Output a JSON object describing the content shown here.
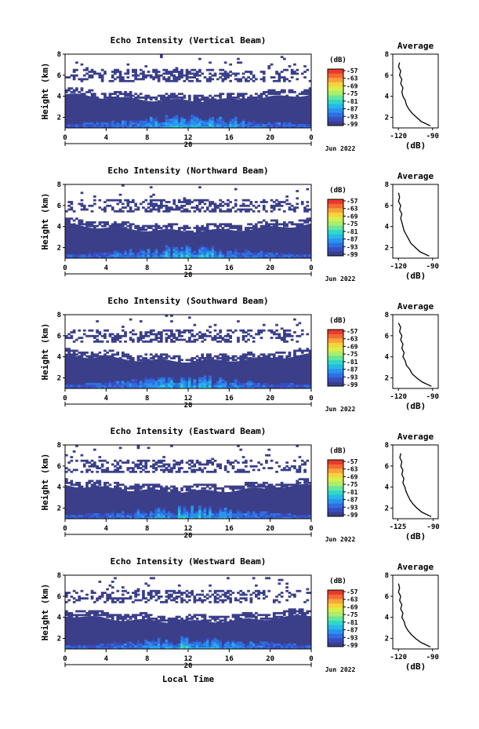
{
  "colors": {
    "background": "#ffffff",
    "no_data": "#ffffff",
    "frame": "#000000",
    "colorbar": [
      "#3b3f8a",
      "#3b4cc0",
      "#2e6fe0",
      "#2a93f0",
      "#25b9e8",
      "#2fd8c8",
      "#6ae59a",
      "#a9ee6c",
      "#d8ee4c",
      "#f5d33c",
      "#f7a33a",
      "#f46a34",
      "#e83a2a"
    ]
  },
  "axis_labels": {
    "ylabel": "Height (km)",
    "xlabel": "Local Time",
    "day_label": "20",
    "month_label": "Jun 2022",
    "colorbar_unit": "(dB)",
    "average_unit": "(dB)",
    "average_title": "Average"
  },
  "chart_data": [
    {
      "type": "heatmap",
      "title": "Echo Intensity (Vertical Beam)",
      "x_label": "",
      "y_label": "Height (km)",
      "xlim": [
        0,
        24
      ],
      "ylim": [
        1,
        8
      ],
      "x_ticks": [
        "0",
        "4",
        "8",
        "12",
        "16",
        "20",
        "0"
      ],
      "y_ticks": [
        "2",
        "4",
        "6",
        "8"
      ],
      "colorbar_ticks": [
        "-57",
        "-63",
        "-69",
        "-75",
        "-81",
        "-87",
        "-93",
        "-99"
      ],
      "average_profile": {
        "title": "Average",
        "xlabel": "(dB)",
        "x_ticks": [
          "-120",
          "-90"
        ],
        "y_ticks": [
          "2",
          "4",
          "6",
          "8"
        ],
        "xlim": [
          -125,
          -85
        ],
        "ylim": [
          1,
          8
        ],
        "x": [
          -92,
          -100,
          -104,
          -108,
          -111,
          -113,
          -114,
          -116,
          -117,
          -116,
          -118,
          -117,
          -119,
          -118,
          -120,
          -119
        ],
        "y": [
          1.2,
          1.6,
          2.0,
          2.4,
          2.8,
          3.2,
          3.6,
          4.0,
          4.4,
          4.8,
          5.2,
          5.6,
          6.0,
          6.4,
          6.8,
          7.2
        ]
      }
    },
    {
      "type": "heatmap",
      "title": "Echo Intensity (Northward Beam)",
      "x_label": "",
      "y_label": "Height (km)",
      "xlim": [
        0,
        24
      ],
      "ylim": [
        1,
        8
      ],
      "x_ticks": [
        "0",
        "4",
        "8",
        "12",
        "16",
        "20",
        "0"
      ],
      "y_ticks": [
        "2",
        "4",
        "6",
        "8"
      ],
      "colorbar_ticks": [
        "-57",
        "-63",
        "-69",
        "-75",
        "-81",
        "-87",
        "-93",
        "-99"
      ],
      "average_profile": {
        "title": "Average",
        "xlabel": "(dB)",
        "x_ticks": [
          "-120",
          "-90"
        ],
        "y_ticks": [
          "2",
          "4",
          "6",
          "8"
        ],
        "xlim": [
          -125,
          -85
        ],
        "ylim": [
          1,
          8
        ],
        "x": [
          -93,
          -101,
          -105,
          -109,
          -111,
          -113,
          -115,
          -116,
          -117,
          -118,
          -117,
          -119,
          -118,
          -120,
          -119,
          -120
        ],
        "y": [
          1.2,
          1.6,
          2.0,
          2.4,
          2.8,
          3.2,
          3.6,
          4.0,
          4.4,
          4.8,
          5.2,
          5.6,
          6.0,
          6.4,
          6.8,
          7.2
        ]
      }
    },
    {
      "type": "heatmap",
      "title": "Echo Intensity (Southward Beam)",
      "x_label": "",
      "y_label": "Height (km)",
      "xlim": [
        0,
        24
      ],
      "ylim": [
        1,
        8
      ],
      "x_ticks": [
        "0",
        "4",
        "8",
        "12",
        "16",
        "20",
        "0"
      ],
      "y_ticks": [
        "2",
        "4",
        "6",
        "8"
      ],
      "colorbar_ticks": [
        "-57",
        "-63",
        "-69",
        "-75",
        "-81",
        "-87",
        "-93",
        "-99"
      ],
      "average_profile": {
        "title": "Average",
        "xlabel": "(dB)",
        "x_ticks": [
          "-120",
          "-90"
        ],
        "y_ticks": [
          "2",
          "4",
          "6",
          "8"
        ],
        "xlim": [
          -125,
          -85
        ],
        "ylim": [
          1,
          8
        ],
        "x": [
          -91,
          -99,
          -104,
          -108,
          -110,
          -113,
          -114,
          -116,
          -115,
          -117,
          -116,
          -118,
          -117,
          -119,
          -118,
          -120
        ],
        "y": [
          1.2,
          1.6,
          2.0,
          2.4,
          2.8,
          3.2,
          3.6,
          4.0,
          4.4,
          4.8,
          5.2,
          5.6,
          6.0,
          6.4,
          6.8,
          7.2
        ]
      }
    },
    {
      "type": "heatmap",
      "title": "Echo Intensity (Eastward Beam)",
      "x_label": "",
      "y_label": "Height (km)",
      "xlim": [
        0,
        24
      ],
      "ylim": [
        1,
        8
      ],
      "x_ticks": [
        "0",
        "4",
        "8",
        "12",
        "16",
        "20",
        "0"
      ],
      "y_ticks": [
        "2",
        "4",
        "6",
        "8"
      ],
      "colorbar_ticks": [
        "-57",
        "-63",
        "-69",
        "-75",
        "-81",
        "-87",
        "-93",
        "-99"
      ],
      "average_profile": {
        "title": "Average",
        "xlabel": "(dB)",
        "x_ticks": [
          "-125",
          "-90"
        ],
        "y_ticks": [
          "2",
          "4",
          "6",
          "8"
        ],
        "xlim": [
          -130,
          -85
        ],
        "ylim": [
          1,
          8
        ],
        "x": [
          -92,
          -101,
          -106,
          -110,
          -113,
          -115,
          -117,
          -118,
          -120,
          -119,
          -121,
          -120,
          -122,
          -121,
          -123,
          -122
        ],
        "y": [
          1.2,
          1.6,
          2.0,
          2.4,
          2.8,
          3.2,
          3.6,
          4.0,
          4.4,
          4.8,
          5.2,
          5.6,
          6.0,
          6.4,
          6.8,
          7.2
        ]
      }
    },
    {
      "type": "heatmap",
      "title": "Echo Intensity (Westward Beam)",
      "x_label": "Local Time",
      "y_label": "Height (km)",
      "xlim": [
        0,
        24
      ],
      "ylim": [
        1,
        8
      ],
      "x_ticks": [
        "0",
        "4",
        "8",
        "12",
        "16",
        "20",
        "0"
      ],
      "y_ticks": [
        "2",
        "4",
        "6",
        "8"
      ],
      "colorbar_ticks": [
        "-57",
        "-63",
        "-69",
        "-75",
        "-81",
        "-87",
        "-93",
        "-99"
      ],
      "average_profile": {
        "title": "Average",
        "xlabel": "(dB)",
        "x_ticks": [
          "-120",
          "-90"
        ],
        "y_ticks": [
          "2",
          "4",
          "6",
          "8"
        ],
        "xlim": [
          -125,
          -85
        ],
        "ylim": [
          1,
          8
        ],
        "x": [
          -92,
          -100,
          -105,
          -109,
          -112,
          -114,
          -115,
          -117,
          -116,
          -118,
          -117,
          -119,
          -118,
          -120,
          -119,
          -120
        ],
        "y": [
          1.2,
          1.6,
          2.0,
          2.4,
          2.8,
          3.2,
          3.6,
          4.0,
          4.4,
          4.8,
          5.2,
          5.6,
          6.0,
          6.4,
          6.8,
          7.2
        ]
      }
    }
  ]
}
